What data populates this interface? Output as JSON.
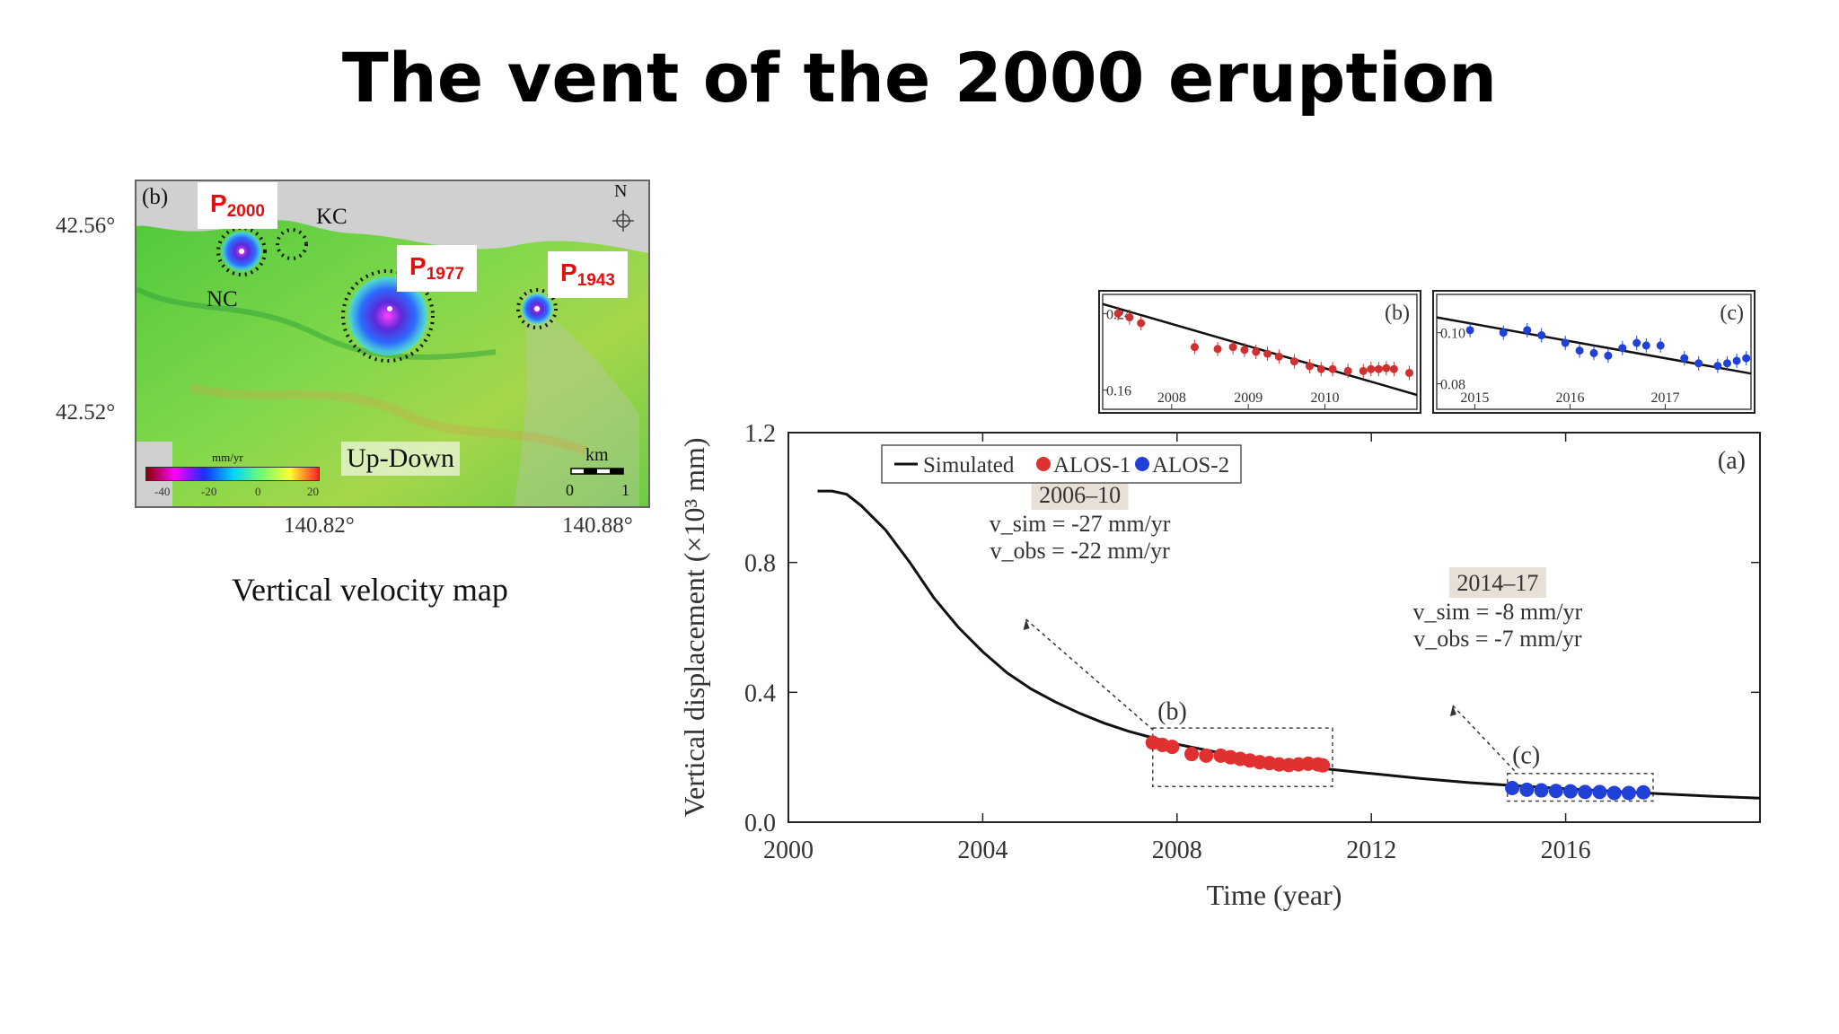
{
  "slide": {
    "title": "The vent of the 2000 eruption",
    "caption": "Vertical velocity map"
  },
  "map": {
    "panel_label": "(b)",
    "north_label": "N",
    "tags": [
      {
        "base": "P",
        "sub": "2000"
      },
      {
        "base": "P",
        "sub": "1977"
      },
      {
        "base": "P",
        "sub": "1943"
      }
    ],
    "kc_label": "KC",
    "nc_label": "NC",
    "mode_label": "Up-Down",
    "scale_label": "km",
    "scale_ticks": [
      "0",
      "1"
    ],
    "colorbar_unit": "mm/yr",
    "colorbar_ticks": [
      "-40",
      "-20",
      "0",
      "20"
    ],
    "lat_ticks": [
      "42.56°",
      "42.52°"
    ],
    "lon_ticks": [
      "140.82°",
      "140.88°"
    ],
    "colors": {
      "land": "#63d040",
      "sea": "#d0d0d0"
    }
  },
  "chart_data": [
    {
      "type": "line",
      "panel_label": "(a)",
      "title": "",
      "xlabel": "Time (year)",
      "ylabel": "Vertical displacement (×10³ mm)",
      "xlim": [
        2000,
        2020
      ],
      "ylim": [
        0,
        1.2
      ],
      "xticks": [
        "2000",
        "2004",
        "2008",
        "2012",
        "2016"
      ],
      "yticks": [
        "0.0",
        "0.4",
        "0.8",
        "1.2"
      ],
      "legend_position": "top-left",
      "grid": false,
      "series": [
        {
          "name": "Simulated",
          "kind": "line",
          "color": "#111111",
          "x": [
            2000.6,
            2000.9,
            2001.2,
            2001.5,
            2002,
            2002.5,
            2003,
            2003.5,
            2004,
            2004.5,
            2005,
            2005.5,
            2006,
            2006.5,
            2007,
            2007.5,
            2008,
            2009,
            2010,
            2011,
            2012,
            2013,
            2014,
            2015,
            2016,
            2017,
            2018,
            2019,
            2020
          ],
          "y": [
            1.02,
            1.02,
            1.01,
            0.975,
            0.9,
            0.8,
            0.69,
            0.6,
            0.525,
            0.46,
            0.41,
            0.37,
            0.335,
            0.305,
            0.28,
            0.26,
            0.24,
            0.21,
            0.185,
            0.165,
            0.15,
            0.135,
            0.122,
            0.112,
            0.103,
            0.095,
            0.087,
            0.08,
            0.074
          ]
        },
        {
          "name": "ALOS-1",
          "kind": "scatter",
          "color": "#e03030",
          "x": [
            2007.5,
            2007.7,
            2007.9,
            2008.3,
            2008.6,
            2008.9,
            2009.1,
            2009.3,
            2009.5,
            2009.7,
            2009.9,
            2010.1,
            2010.3,
            2010.5,
            2010.7,
            2010.9,
            2011.0
          ],
          "y": [
            0.245,
            0.238,
            0.232,
            0.21,
            0.205,
            0.205,
            0.2,
            0.195,
            0.19,
            0.185,
            0.182,
            0.178,
            0.176,
            0.178,
            0.18,
            0.178,
            0.175
          ]
        },
        {
          "name": "ALOS-2",
          "kind": "scatter",
          "color": "#2040d8",
          "x": [
            2014.9,
            2015.2,
            2015.5,
            2015.8,
            2016.1,
            2016.4,
            2016.7,
            2017.0,
            2017.3,
            2017.6
          ],
          "y": [
            0.105,
            0.1,
            0.098,
            0.096,
            0.095,
            0.093,
            0.093,
            0.09,
            0.09,
            0.092
          ]
        }
      ],
      "annotations": [
        {
          "box_label": "(b)",
          "period": "2006–10",
          "v_sim": "v_sim = -27 mm/yr",
          "v_obs": "v_obs = -22 mm/yr"
        },
        {
          "box_label": "(c)",
          "period": "2014–17",
          "v_sim": "v_sim = -8 mm/yr",
          "v_obs": "v_obs = -7 mm/yr"
        }
      ]
    },
    {
      "type": "line",
      "panel_label": "(b)",
      "xlim": [
        2007.1,
        2011.2
      ],
      "ylim": [
        0.14,
        0.26
      ],
      "xticks": [
        "2008",
        "2009",
        "2010"
      ],
      "yticks": [
        "0.24",
        "0.16"
      ],
      "line": {
        "x": [
          2007.1,
          2011.2
        ],
        "y": [
          0.25,
          0.155
        ]
      },
      "points": {
        "x": [
          2007.3,
          2007.45,
          2007.6,
          2008.3,
          2008.6,
          2008.8,
          2008.95,
          2009.1,
          2009.25,
          2009.4,
          2009.6,
          2009.8,
          2009.95,
          2010.1,
          2010.3,
          2010.5,
          2010.6,
          2010.7,
          2010.8,
          2010.9,
          2011.1
        ],
        "y": [
          0.24,
          0.236,
          0.23,
          0.205,
          0.203,
          0.205,
          0.202,
          0.2,
          0.198,
          0.195,
          0.19,
          0.185,
          0.182,
          0.182,
          0.18,
          0.18,
          0.182,
          0.182,
          0.183,
          0.182,
          0.178
        ]
      }
    },
    {
      "type": "line",
      "panel_label": "(c)",
      "xlim": [
        2014.6,
        2017.9
      ],
      "ylim": [
        0.07,
        0.115
      ],
      "xticks": [
        "2015",
        "2016",
        "2017"
      ],
      "yticks": [
        "0.10",
        "0.08"
      ],
      "line": {
        "x": [
          2014.6,
          2017.9
        ],
        "y": [
          0.106,
          0.084
        ]
      },
      "points": {
        "x": [
          2014.95,
          2015.3,
          2015.55,
          2015.7,
          2015.95,
          2016.1,
          2016.25,
          2016.4,
          2016.55,
          2016.7,
          2016.8,
          2016.95,
          2017.2,
          2017.35,
          2017.55,
          2017.65,
          2017.75,
          2017.85
        ],
        "y": [
          0.101,
          0.1,
          0.101,
          0.099,
          0.096,
          0.093,
          0.092,
          0.091,
          0.094,
          0.096,
          0.095,
          0.095,
          0.09,
          0.088,
          0.087,
          0.088,
          0.089,
          0.09
        ]
      }
    }
  ]
}
